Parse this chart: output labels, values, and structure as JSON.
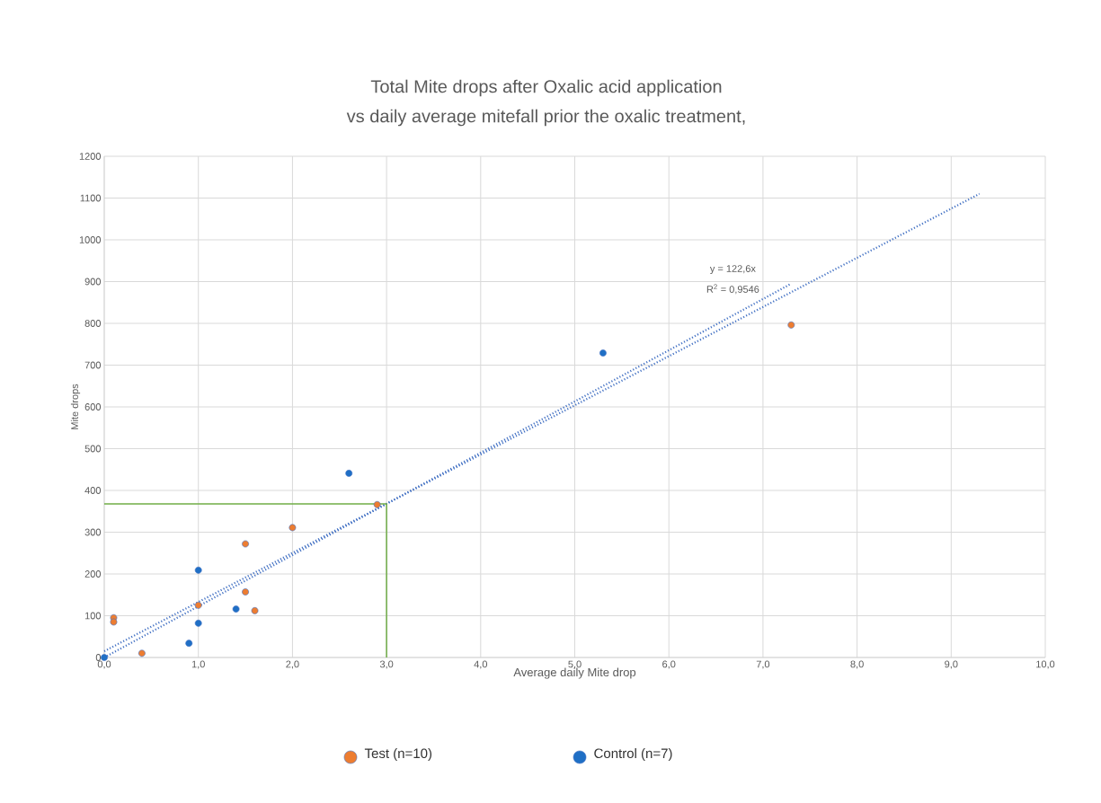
{
  "chart_data": {
    "type": "scatter",
    "title": "Total Mite drops after Oxalic acid application",
    "subtitle": "vs daily average mitefall prior the oxalic treatment,",
    "xlabel": "Average daily Mite drop",
    "ylabel": "Mite drops",
    "xlim": [
      0,
      10
    ],
    "ylim": [
      0,
      1200
    ],
    "xticks": [
      {
        "value": 0,
        "label": "0,0"
      },
      {
        "value": 1,
        "label": "1,0"
      },
      {
        "value": 2,
        "label": "2,0"
      },
      {
        "value": 3,
        "label": "3,0"
      },
      {
        "value": 4,
        "label": "4,0"
      },
      {
        "value": 5,
        "label": "5,0"
      },
      {
        "value": 6,
        "label": "6,0"
      },
      {
        "value": 7,
        "label": "7,0"
      },
      {
        "value": 8,
        "label": "8,0"
      },
      {
        "value": 9,
        "label": "9,0"
      },
      {
        "value": 10,
        "label": "10,0"
      }
    ],
    "yticks": [
      0,
      100,
      200,
      300,
      400,
      500,
      600,
      700,
      800,
      900,
      1000,
      1100,
      1200
    ],
    "grid": true,
    "legend": "bottom",
    "marker": "circle",
    "series": [
      {
        "name": "Test (n=10)",
        "color": "#ed7d31",
        "x": [
          0.1,
          0.1,
          0.4,
          1.0,
          1.5,
          1.5,
          1.6,
          2.0,
          2.9,
          7.3
        ],
        "values": [
          95,
          85,
          10,
          125,
          272,
          157,
          112,
          311,
          366,
          796
        ]
      },
      {
        "name": "Control (n=7)",
        "color": "#1f6fc5",
        "x": [
          0,
          0.9,
          1.0,
          1.0,
          1.4,
          2.6,
          5.3
        ],
        "values": [
          0,
          34,
          82,
          209,
          116,
          441,
          729
        ]
      },
      {
        "type": "line",
        "color": "#4472c4",
        "line_style": "dotted",
        "marker": "none",
        "x": [
          0,
          7.3
        ],
        "values": [
          0,
          895
        ]
      },
      {
        "type": "line",
        "color": "#4472c4",
        "line_style": "dotted",
        "marker": "none",
        "x": [
          0,
          9.3
        ],
        "values": [
          15,
          1110
        ]
      },
      {
        "type": "line",
        "color": "#70ad47",
        "line_style": "solid",
        "marker": "none",
        "x": [
          0,
          3.0,
          3.0
        ],
        "values": [
          368,
          368,
          0
        ]
      }
    ],
    "annotations": [
      "y = 122,6x",
      "R$^{2}$ = 0,9546"
    ]
  }
}
